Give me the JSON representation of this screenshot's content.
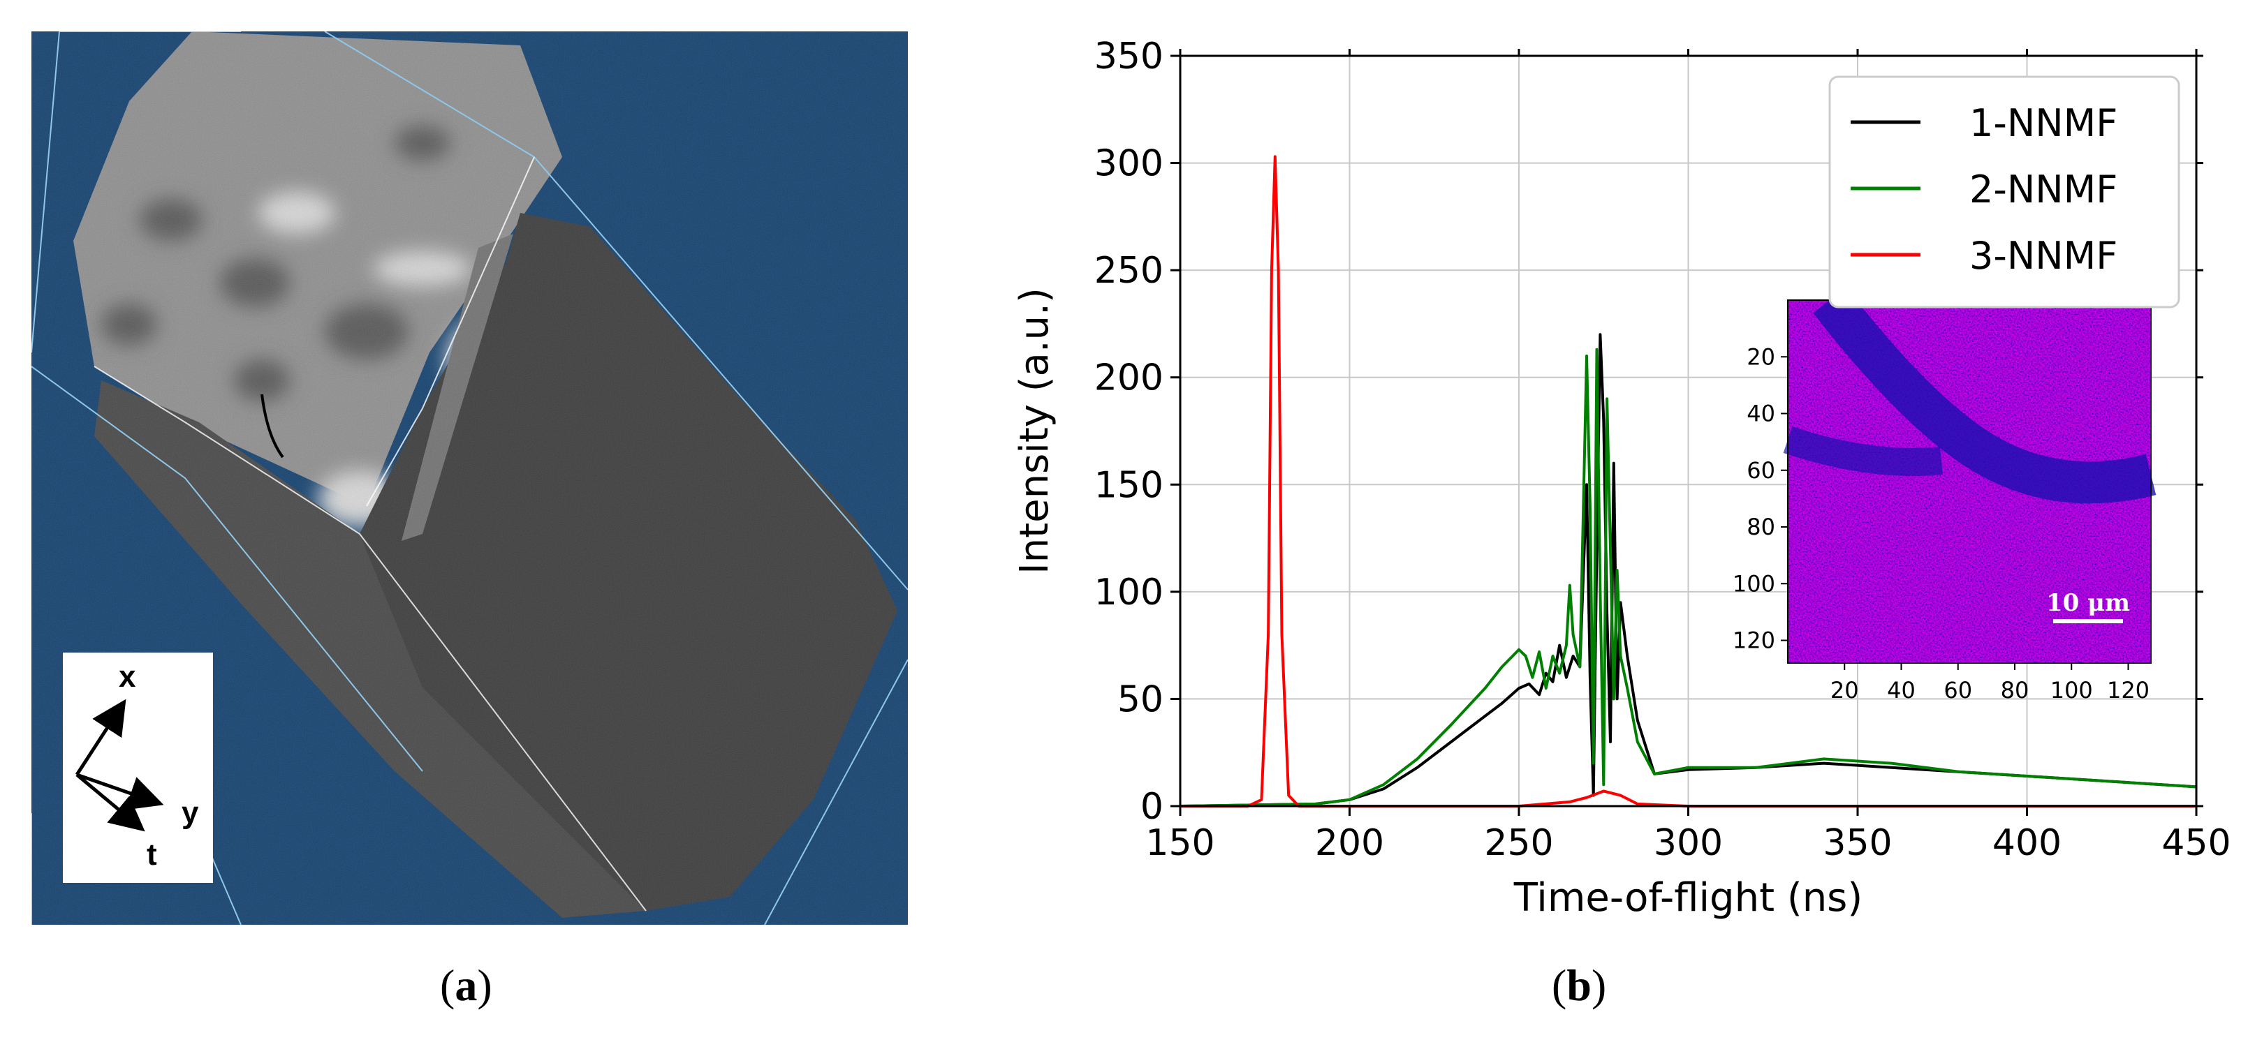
{
  "panel_a": {
    "axes_labels": [
      "x",
      "y",
      "t"
    ],
    "caption_open": "(",
    "caption_letter": "a",
    "caption_close": ")"
  },
  "panel_b": {
    "caption_open": "(",
    "caption_letter": "b",
    "caption_close": ")"
  },
  "chart_data": [
    {
      "type": "line",
      "title": "",
      "xlabel": "Time-of-flight (ns)",
      "ylabel": "Intensity (a.u.)",
      "xlim": [
        150,
        450
      ],
      "ylim": [
        0,
        350
      ],
      "xticks": [
        150,
        200,
        250,
        300,
        350,
        400,
        450
      ],
      "yticks": [
        0,
        50,
        100,
        150,
        200,
        250,
        300,
        350
      ],
      "grid": true,
      "legend_position": "top-right",
      "series": [
        {
          "name": "1-NNMF",
          "color": "#000000",
          "x": [
            150,
            190,
            200,
            210,
            220,
            230,
            240,
            245,
            250,
            253,
            256,
            258,
            260,
            262,
            264,
            266,
            268,
            270,
            271,
            272,
            273,
            274,
            275,
            276,
            277,
            278,
            279,
            280,
            282,
            285,
            290,
            300,
            320,
            340,
            360,
            380,
            400,
            420,
            450
          ],
          "y": [
            0,
            1,
            3,
            8,
            18,
            30,
            42,
            48,
            55,
            57,
            52,
            62,
            58,
            75,
            60,
            70,
            65,
            150,
            60,
            5,
            120,
            220,
            180,
            90,
            30,
            160,
            50,
            95,
            70,
            40,
            15,
            17,
            18,
            20,
            18,
            16,
            14,
            12,
            9
          ]
        },
        {
          "name": "2-NNMF",
          "color": "#008000",
          "x": [
            150,
            190,
            200,
            210,
            220,
            230,
            240,
            245,
            250,
            252,
            254,
            256,
            258,
            260,
            262,
            264,
            265,
            266,
            268,
            270,
            271,
            272,
            273,
            274,
            275,
            276,
            277,
            278,
            279,
            280,
            282,
            285,
            290,
            300,
            320,
            340,
            360,
            380,
            400,
            420,
            450
          ],
          "y": [
            0,
            1,
            3,
            10,
            22,
            38,
            55,
            65,
            73,
            70,
            60,
            72,
            55,
            70,
            62,
            75,
            103,
            80,
            65,
            210,
            140,
            20,
            213,
            100,
            10,
            190,
            120,
            50,
            110,
            70,
            55,
            30,
            15,
            18,
            18,
            22,
            20,
            16,
            14,
            12,
            9
          ]
        },
        {
          "name": "3-NNMF",
          "color": "#ff0000",
          "x": [
            150,
            170,
            174,
            176,
            177,
            178,
            179,
            180,
            182,
            185,
            200,
            250,
            265,
            270,
            275,
            280,
            285,
            300,
            350,
            400,
            450
          ],
          "y": [
            0,
            0,
            3,
            80,
            250,
            303,
            250,
            80,
            5,
            0,
            0,
            0,
            2,
            4,
            7,
            5,
            1,
            0,
            0,
            0,
            0
          ]
        }
      ],
      "inset": {
        "type": "heatmap",
        "xticks": [
          20,
          40,
          60,
          80,
          100,
          120
        ],
        "yticks": [
          20,
          40,
          60,
          80,
          100,
          120
        ],
        "range": [
          0,
          128
        ],
        "scale_bar_label": "10 μm"
      }
    }
  ]
}
